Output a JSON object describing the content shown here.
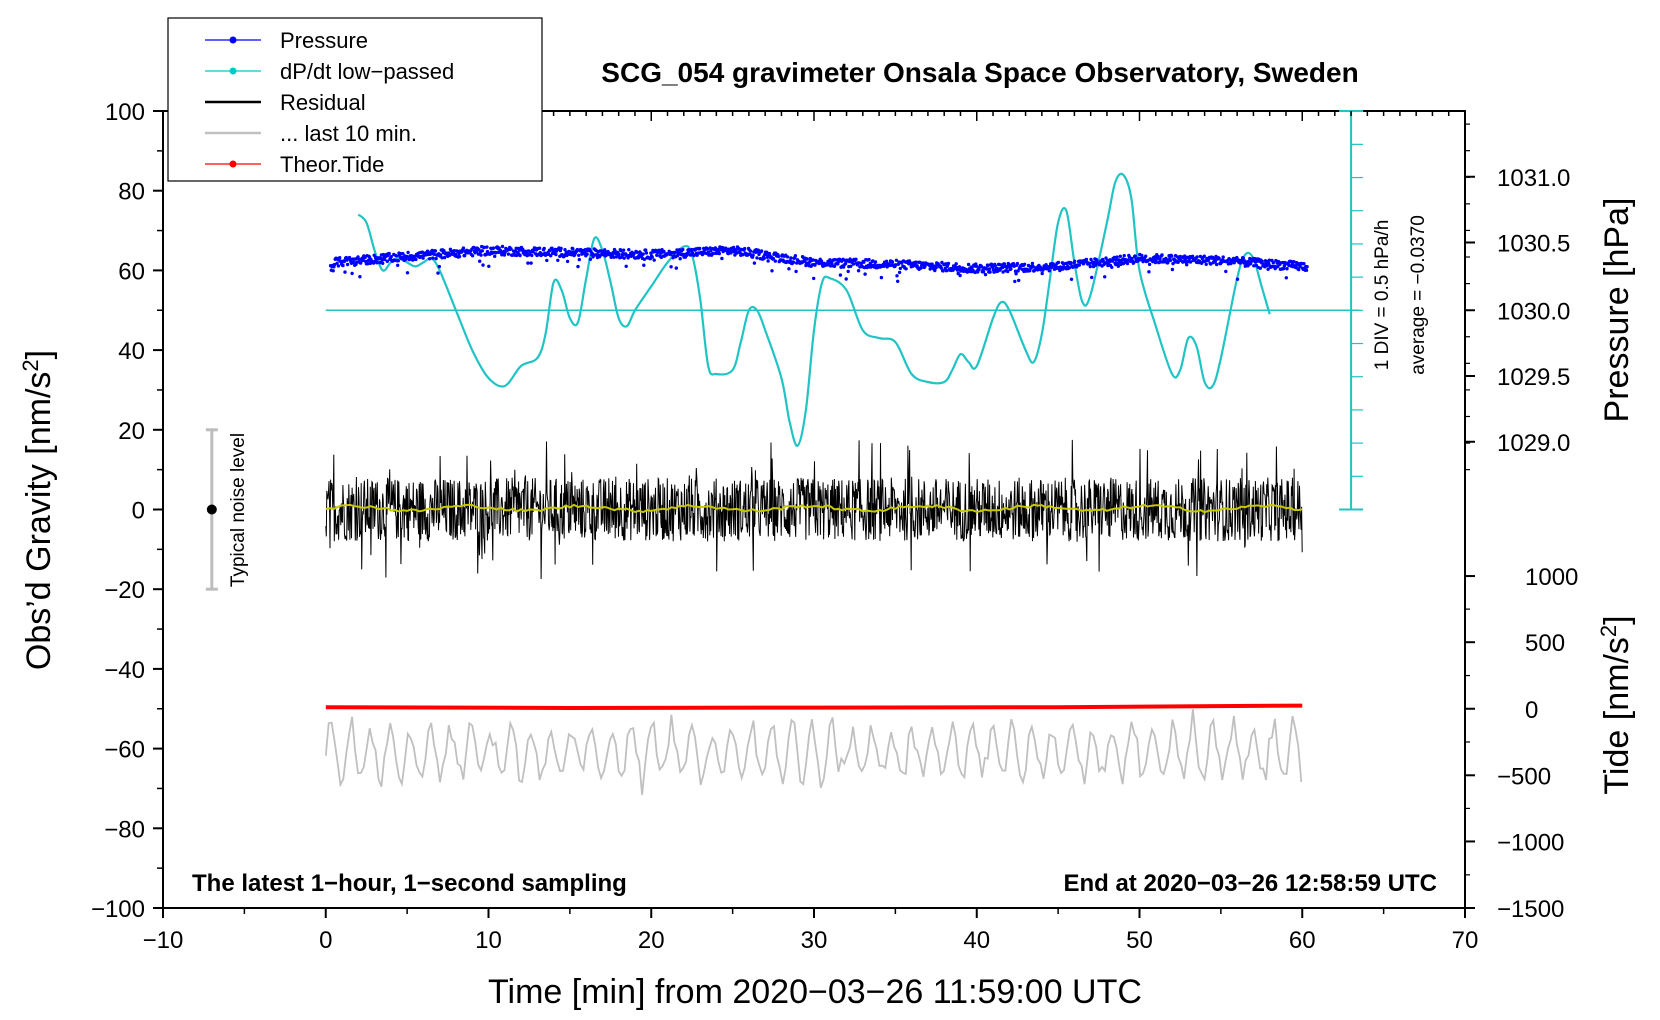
{
  "chart_data": {
    "type": "line",
    "title": "SCG_054 gravimeter Onsala Space Observatory, Sweden",
    "xlabel": "Time [min] from 2020−03−26 11:59:00 UTC",
    "ylabel": "Obs’d Gravity [nm/s²]",
    "ylabel_parts": {
      "main": "Obs’d Gravity [nm/s",
      "sup": "2",
      "end": "]"
    },
    "y2label": "Pressure [hPa]",
    "y3label_parts": {
      "main": "Tide [nm/s",
      "sup": "2",
      "end": "]"
    },
    "xlim": [
      -10,
      70
    ],
    "ylim": [
      -100,
      100
    ],
    "x_ticks": [
      -10,
      0,
      10,
      20,
      30,
      40,
      50,
      60,
      70
    ],
    "x_tick_labels": [
      "−10",
      "0",
      "10",
      "20",
      "30",
      "40",
      "50",
      "60",
      "70"
    ],
    "y_ticks": [
      100,
      80,
      60,
      40,
      20,
      0,
      -20,
      -40,
      -60,
      -80,
      -100
    ],
    "y_tick_labels": [
      "100",
      "80",
      "60",
      "40",
      "20",
      "0",
      "−20",
      "−40",
      "−60",
      "−80",
      "−100"
    ],
    "pressure_axis": {
      "ticks": [
        1031.0,
        1030.5,
        1030.0,
        1029.5,
        1029.0
      ],
      "tick_labels": [
        "1031.0",
        "1030.5",
        "1030.0",
        "1029.5",
        "1029.0"
      ],
      "gravity_equivalent": [
        83.5,
        67,
        50,
        33.5,
        17
      ]
    },
    "tide_axis": {
      "ticks": [
        1000,
        500,
        0,
        -500,
        -1000,
        -1500
      ],
      "tick_labels": [
        "1000",
        "500",
        "0",
        "−500",
        "−1000",
        "−1500"
      ],
      "gravity_equivalent": [
        -16.7,
        -33.3,
        -50,
        -66.7,
        -83.3,
        -100
      ]
    },
    "legend": [
      {
        "label": "Pressure",
        "color": "#0000ff",
        "marker": true
      },
      {
        "label": "dP/dt low−passed",
        "color": "#00c8c8",
        "marker": true
      },
      {
        "label": "Residual",
        "color": "#000000",
        "marker": false
      },
      {
        "label": "... last 10 min.",
        "color": "#c0c0c0",
        "marker": false
      },
      {
        "label": "Theor.Tide",
        "color": "#ff0000",
        "marker": true
      }
    ],
    "dpdt_scale_label": "1 DIV = 0.5 hPa/h",
    "dpdt_average_label": "average = −0.0370",
    "noise_label": "Typical noise level",
    "noise_bar": {
      "x": -7,
      "y_min": -20,
      "y_max": 20
    },
    "bottom_left_note": "The latest 1−hour, 1−second sampling",
    "bottom_right_note": "End at 2020−03−26 12:58:59 UTC",
    "dpdt_baseline": 50,
    "series": [
      {
        "name": "dP/dt low-passed",
        "color": "#20c4c4",
        "x": [
          2.0,
          2.5,
          3.0,
          3.5,
          4.0,
          4.5,
          5.0,
          5.5,
          6.0,
          6.5,
          7.0,
          8.0,
          9.0,
          10.0,
          11.0,
          12.0,
          13.0,
          13.5,
          14.0,
          14.5,
          15.0,
          15.5,
          16.0,
          16.5,
          17.0,
          17.5,
          18.0,
          18.5,
          19.0,
          20.0,
          21.0,
          22.0,
          22.5,
          23.0,
          23.5,
          24.0,
          25.0,
          25.5,
          26.0,
          26.5,
          27.0,
          28.0,
          28.5,
          29.0,
          29.5,
          30.0,
          30.5,
          31.0,
          32.0,
          33.0,
          34.0,
          35.0,
          36.0,
          37.0,
          38.0,
          38.5,
          39.0,
          39.5,
          40.0,
          41.0,
          41.5,
          42.0,
          43.0,
          43.5,
          44.0,
          44.5,
          45.0,
          45.5,
          46.0,
          46.5,
          47.0,
          48.0,
          48.5,
          49.0,
          49.5,
          50.0,
          51.0,
          52.0,
          52.5,
          53.0,
          53.5,
          54.0,
          54.5,
          55.0,
          56.0,
          56.5,
          57.0,
          57.5,
          58.0
        ],
        "values": [
          74,
          72,
          65,
          60,
          62,
          63,
          62,
          61,
          62,
          63,
          60,
          50,
          40,
          33,
          31,
          36,
          38,
          44,
          57,
          55,
          48,
          47,
          58,
          68,
          65,
          57,
          48,
          46,
          50,
          56,
          62,
          66,
          64,
          53,
          36,
          34,
          35,
          42,
          50,
          50,
          45,
          33,
          22,
          16,
          25,
          45,
          57,
          58,
          55,
          45,
          43,
          42,
          34,
          32,
          32,
          35,
          39,
          37,
          36,
          48,
          52,
          50,
          40,
          37,
          44,
          58,
          72,
          75,
          62,
          52,
          54,
          72,
          82,
          84,
          78,
          60,
          46,
          34,
          35,
          43,
          41,
          32,
          31,
          38,
          58,
          64,
          63,
          56,
          49
        ]
      },
      {
        "name": "Pressure",
        "color": "#0000ff",
        "center_x": [
          0.5,
          5,
          10,
          15,
          20,
          25,
          30,
          35,
          40,
          45,
          50,
          55,
          60
        ],
        "center_y": [
          62,
          63.5,
          65,
          64.5,
          64,
          65,
          62,
          61.5,
          60.5,
          61,
          63,
          62.5,
          61
        ],
        "x_range": [
          0.3,
          60.3
        ]
      },
      {
        "name": "Residual",
        "color": "#000000",
        "x_range": [
          0,
          60
        ],
        "center": 0,
        "amplitude": 8,
        "peak_min": -20,
        "peak_max": 19
      },
      {
        "name": "Residual smoothed",
        "color": "#c8c800",
        "x_range": [
          0,
          60
        ],
        "center": 0.3
      },
      {
        "name": "... last 10 min.",
        "color": "#c0c0c0",
        "x_range": [
          0,
          60
        ],
        "center": -61,
        "amplitude": 7,
        "min": -78,
        "max": -47
      },
      {
        "name": "Theor.Tide",
        "color": "#ff0000",
        "x": [
          0,
          15,
          30,
          45,
          60
        ],
        "values": [
          -49.6,
          -49.8,
          -49.7,
          -49.6,
          -49.2
        ]
      }
    ]
  }
}
